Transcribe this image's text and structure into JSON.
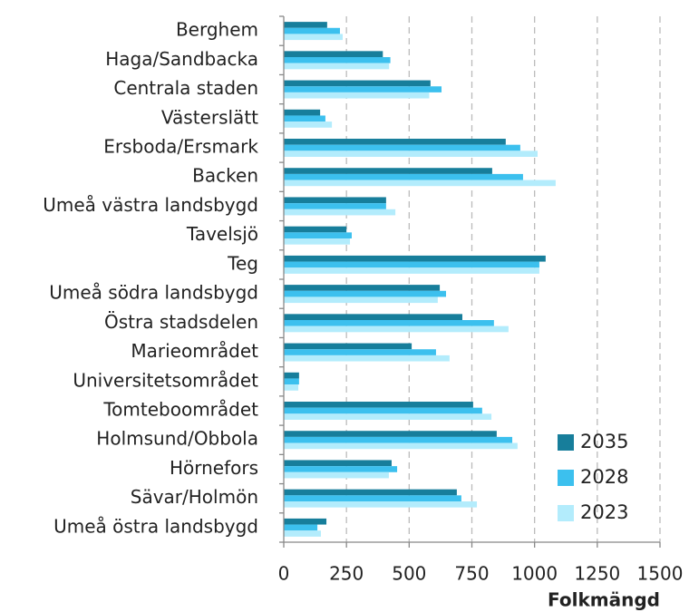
{
  "chart_data": {
    "type": "bar",
    "orientation": "horizontal",
    "xlabel": "Folkmängd",
    "categories": [
      "Berghem",
      "Haga/Sandbacka",
      "Centrala staden",
      "Västerslätt",
      "Ersboda/Ersmark",
      "Backen",
      "Umeå västra landsbygd",
      "Tavelsjö",
      "Teg",
      "Umeå södra landsbygd",
      "Östra stadsdelen",
      "Marieområdet",
      "Universitetsområdet",
      "Tomteboområdet",
      "Holmsund/Obbola",
      "Hörnefors",
      "Sävar/Holmön",
      "Umeå östra landsbygd"
    ],
    "series": [
      {
        "name": "2035",
        "color": "#177e9b",
        "values": [
          173,
          395,
          585,
          145,
          885,
          831,
          408,
          250,
          1044,
          622,
          712,
          510,
          61,
          755,
          849,
          430,
          690,
          170
        ]
      },
      {
        "name": "2028",
        "color": "#3cc0ee",
        "values": [
          224,
          425,
          629,
          166,
          943,
          954,
          408,
          271,
          1019,
          647,
          838,
          607,
          61,
          791,
          911,
          452,
          708,
          134
        ]
      },
      {
        "name": "2023",
        "color": "#b3ecfc",
        "values": [
          235,
          420,
          580,
          192,
          1012,
          1084,
          445,
          264,
          1019,
          614,
          896,
          661,
          58,
          828,
          932,
          419,
          770,
          148
        ]
      }
    ],
    "xlim": [
      0,
      1500
    ],
    "xticks": [
      0,
      250,
      500,
      750,
      1000,
      1250,
      1500
    ],
    "grid": true,
    "legend": "lower right"
  }
}
